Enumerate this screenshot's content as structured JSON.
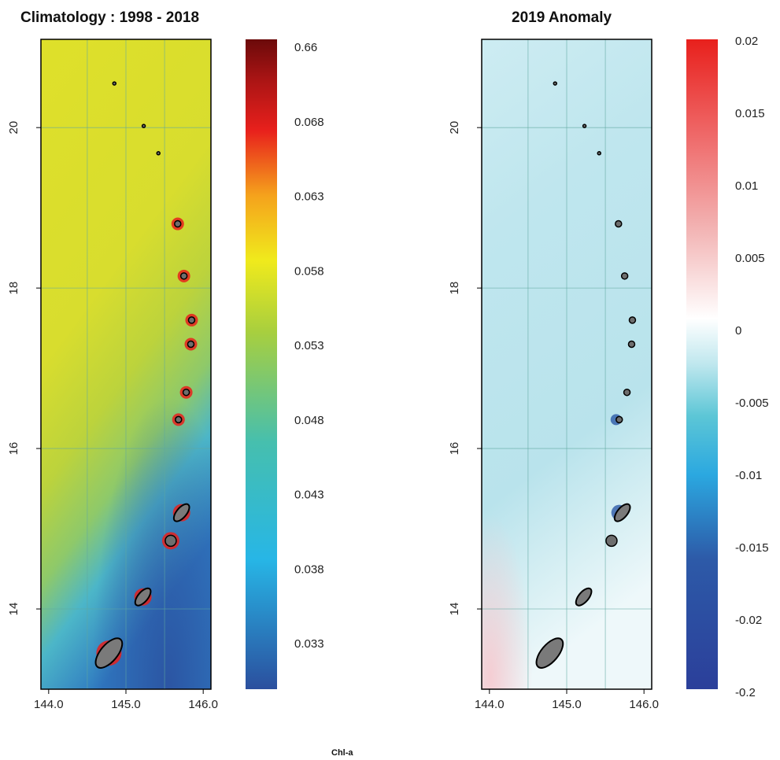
{
  "footer_label": "Chl-a",
  "chart_data": [
    {
      "type": "heatmap",
      "title": "Climatology : 1998 - 2018",
      "xlabel": "",
      "ylabel": "",
      "xlim": [
        143.9,
        146.1
      ],
      "ylim": [
        13.0,
        21.1
      ],
      "x_ticks": [
        "144.0",
        "145.0",
        "146.0"
      ],
      "y_ticks": [
        "14",
        "16",
        "18",
        "20"
      ],
      "grid": true,
      "colorbar": {
        "labels": [
          "0.66",
          "0.068",
          "0.063",
          "0.058",
          "0.053",
          "0.048",
          "0.043",
          "0.038",
          "0.033"
        ],
        "colors": [
          "#6b0a0a",
          "#a81414",
          "#e8201c",
          "#f5a21c",
          "#f0ea1c",
          "#a8cf3e",
          "#46bfae",
          "#27b6e6",
          "#2b4f9e"
        ]
      },
      "field": "Yellow-green over most of the domain, shifting to blue toward the south-west; red/orange rims around islands",
      "islands": [
        {
          "lon": 144.85,
          "lat": 20.55
        },
        {
          "lon": 145.23,
          "lat": 20.02
        },
        {
          "lon": 145.42,
          "lat": 19.68
        },
        {
          "lon": 145.67,
          "lat": 18.8
        },
        {
          "lon": 145.75,
          "lat": 18.15
        },
        {
          "lon": 145.85,
          "lat": 17.6
        },
        {
          "lon": 145.84,
          "lat": 17.3
        },
        {
          "lon": 145.78,
          "lat": 16.7
        },
        {
          "lon": 145.68,
          "lat": 16.36
        },
        {
          "lon": 145.72,
          "lat": 15.2
        },
        {
          "lon": 145.58,
          "lat": 14.85
        },
        {
          "lon": 145.22,
          "lat": 14.15
        },
        {
          "lon": 144.78,
          "lat": 13.45
        }
      ]
    },
    {
      "type": "heatmap",
      "title": "2019 Anomaly",
      "xlabel": "",
      "ylabel": "",
      "xlim": [
        143.9,
        146.1
      ],
      "ylim": [
        13.0,
        21.1
      ],
      "x_ticks": [
        "144.0",
        "145.0",
        "146.0"
      ],
      "y_ticks": [
        "14",
        "16",
        "18",
        "20"
      ],
      "grid": true,
      "colorbar": {
        "labels": [
          "0.02",
          "0.015",
          "0.01",
          "0.005",
          "0",
          "-0.005",
          "-0.01",
          "-0.015",
          "-0.02",
          "-0.2"
        ],
        "colors": [
          "#e8201c",
          "#ef6a6a",
          "#f3b8b8",
          "#ffffff",
          "#bfe7ee",
          "#5cc6d6",
          "#2ba8e0",
          "#2d5aa8",
          "#2b3f9a"
        ]
      },
      "field": "Mostly light blue (slightly negative anomaly), whiter patches in the south with faint pink near the south-west corner",
      "islands": [
        {
          "lon": 144.85,
          "lat": 20.55
        },
        {
          "lon": 145.23,
          "lat": 20.02
        },
        {
          "lon": 145.42,
          "lat": 19.68
        },
        {
          "lon": 145.67,
          "lat": 18.8
        },
        {
          "lon": 145.75,
          "lat": 18.15
        },
        {
          "lon": 145.85,
          "lat": 17.6
        },
        {
          "lon": 145.84,
          "lat": 17.3
        },
        {
          "lon": 145.78,
          "lat": 16.7
        },
        {
          "lon": 145.68,
          "lat": 16.36
        },
        {
          "lon": 145.72,
          "lat": 15.2
        },
        {
          "lon": 145.58,
          "lat": 14.85
        },
        {
          "lon": 145.22,
          "lat": 14.15
        },
        {
          "lon": 144.78,
          "lat": 13.45
        }
      ]
    }
  ]
}
